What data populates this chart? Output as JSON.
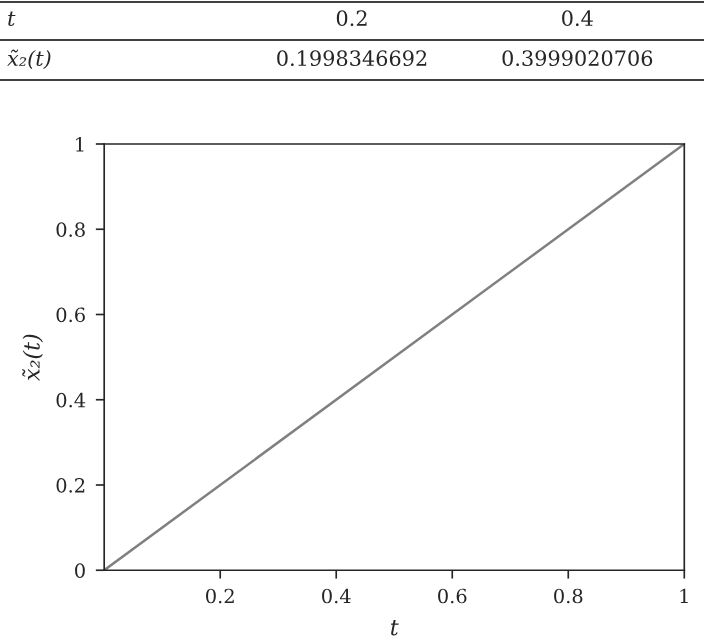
{
  "chart_data": {
    "type": "line",
    "xlabel": "t",
    "ylabel": "x̃₂(t)",
    "annotations": [
      "t",
      "0.2",
      "0.4",
      "x̃₂(t)",
      "0.1998346692",
      "0.3999020706"
    ],
    "x": [
      0,
      1
    ],
    "series": [
      {
        "color": "#808080",
        "values": [
          0,
          1
        ]
      }
    ],
    "xlim": [
      0,
      1
    ],
    "xticks": [
      0.2,
      0.4,
      0.6,
      0.8,
      1
    ],
    "ylim": [
      0,
      1
    ],
    "yticks": [
      0,
      0.2,
      0.4,
      0.6,
      0.8,
      1
    ],
    "grid": false,
    "marker": "none",
    "line_style": "solid"
  }
}
